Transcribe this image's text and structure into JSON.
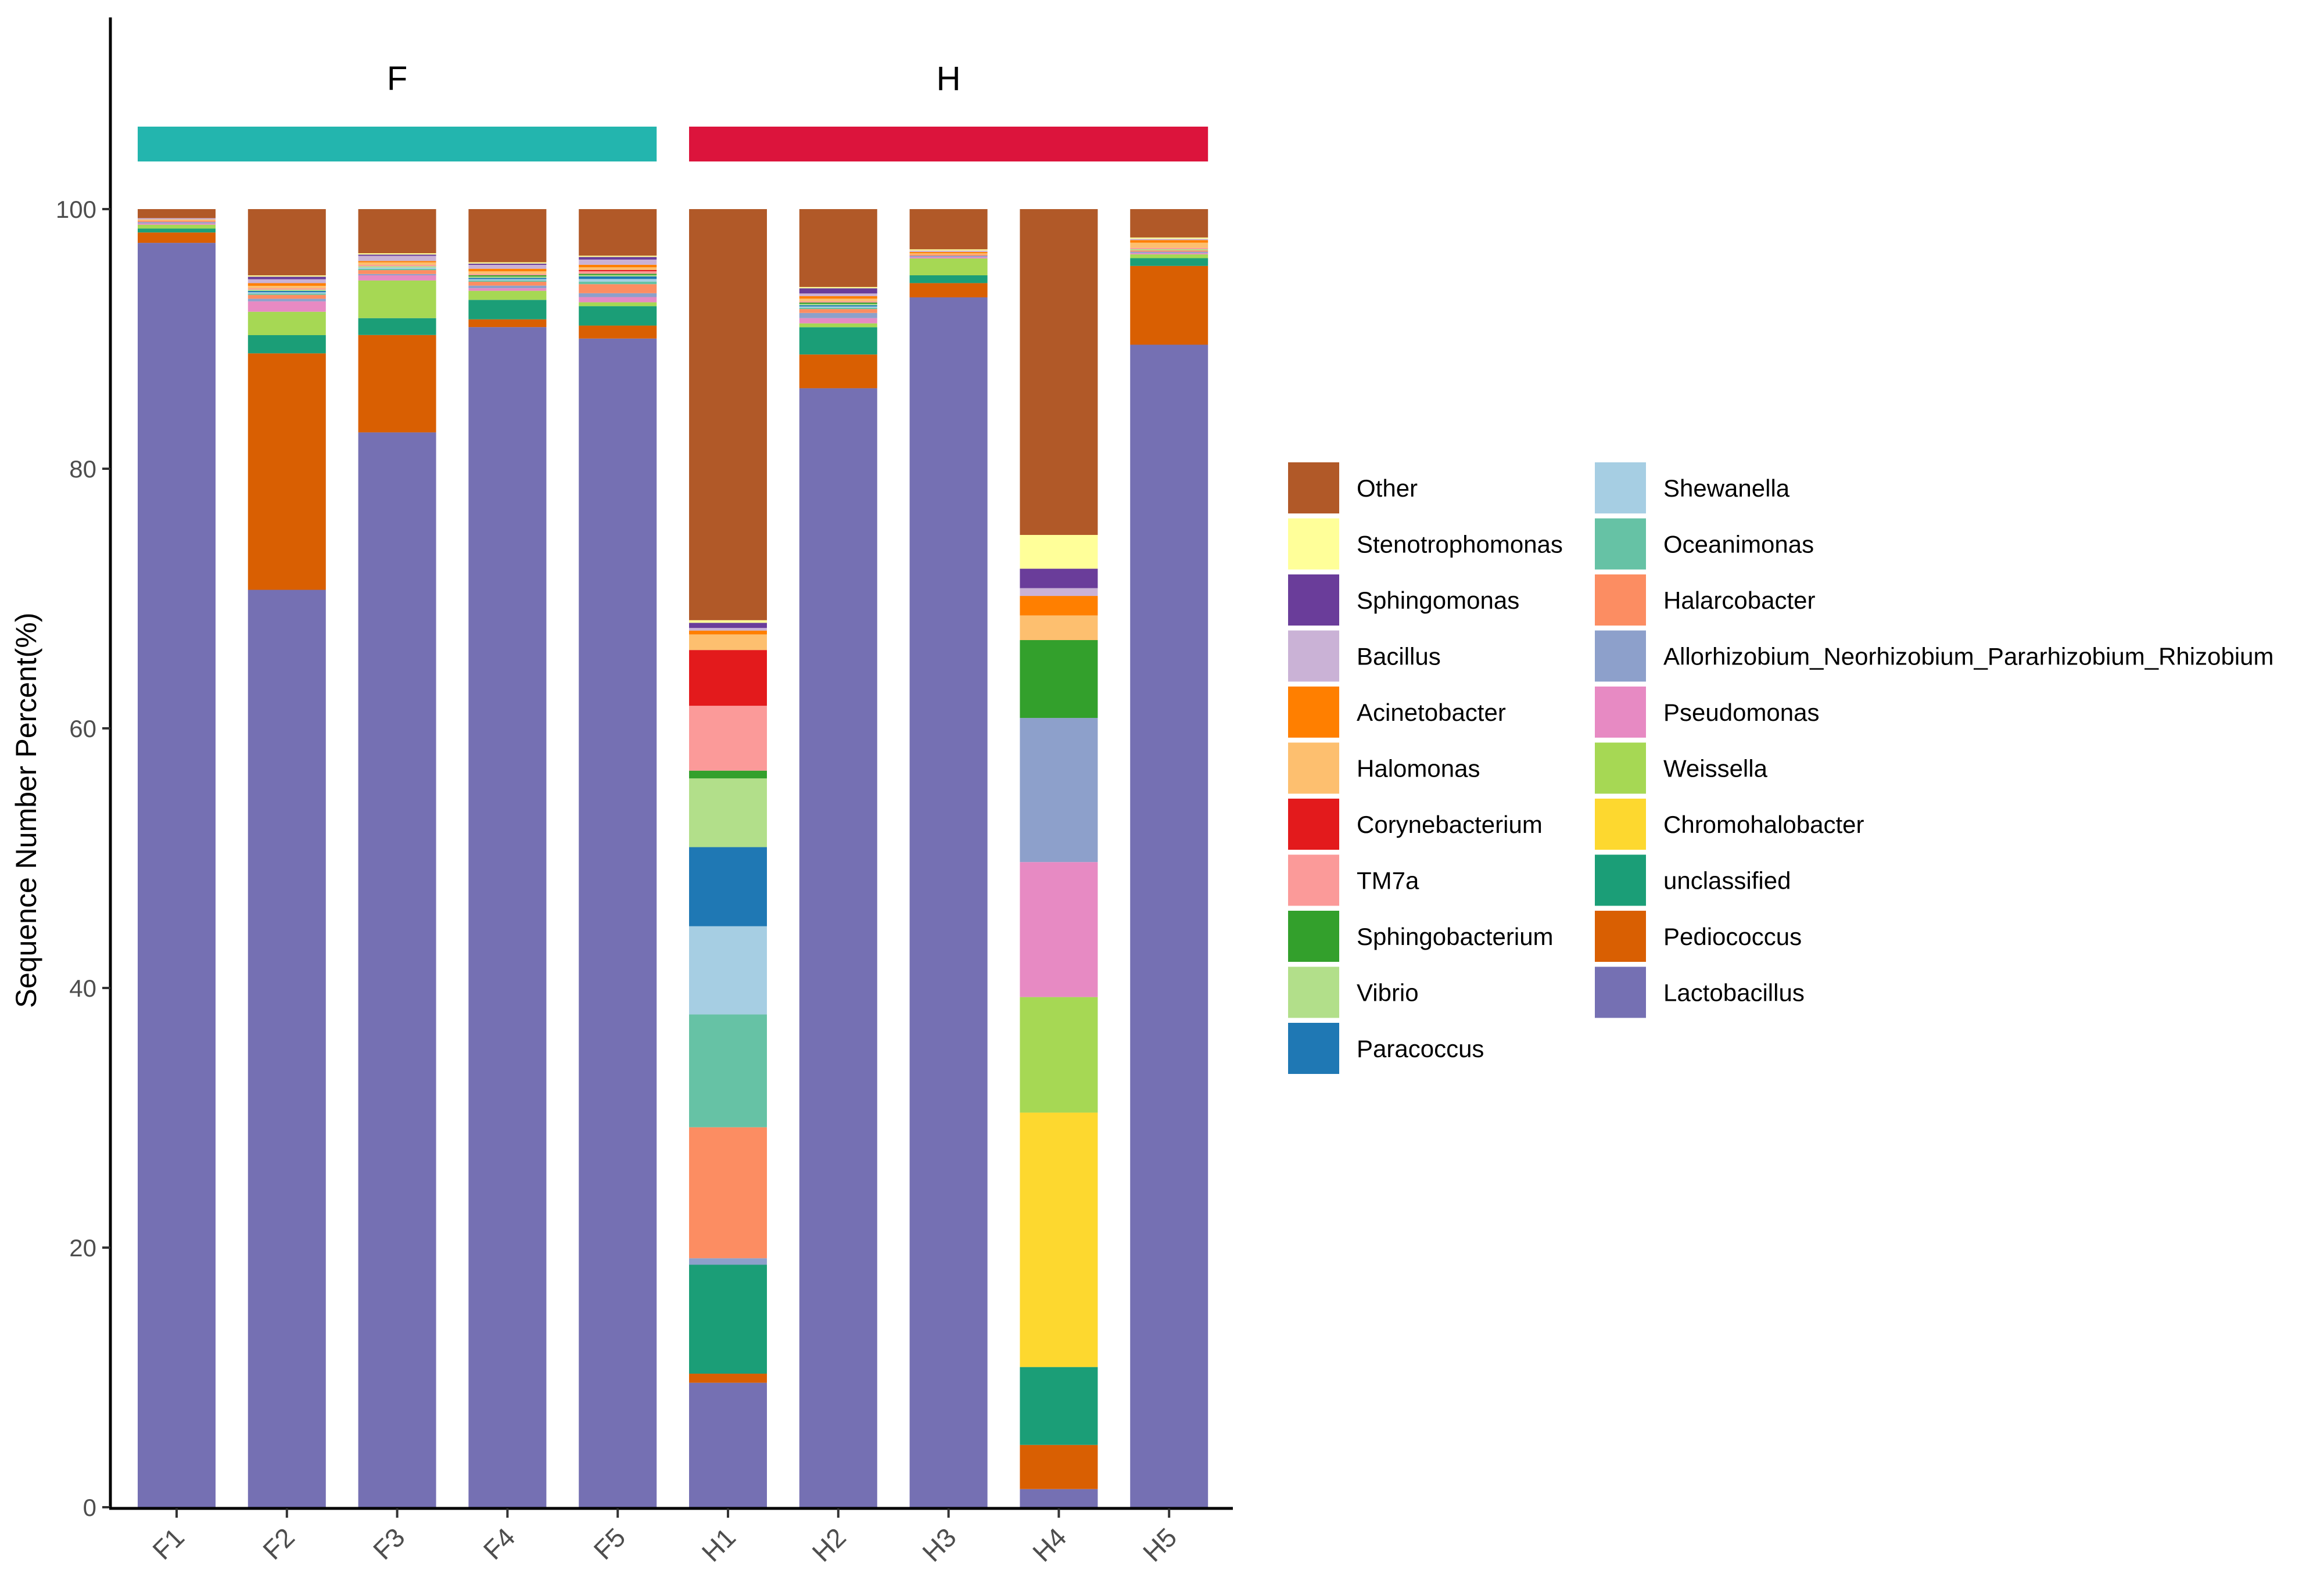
{
  "chart_data": {
    "type": "stacked-bar",
    "ylabel": "Sequence Number Percent(%)",
    "xlabel": "",
    "ylim": [
      0,
      100
    ],
    "yticks": [
      0,
      20,
      40,
      60,
      80,
      100
    ],
    "groups": [
      {
        "label": "F",
        "color": "#23B5AE",
        "samples": [
          "F1",
          "F2",
          "F3",
          "F4",
          "F5"
        ]
      },
      {
        "label": "H",
        "color": "#DC143C",
        "samples": [
          "H1",
          "H2",
          "H3",
          "H4",
          "H5"
        ]
      }
    ],
    "categories": [
      "F1",
      "F2",
      "F3",
      "F4",
      "F5",
      "H1",
      "H2",
      "H3",
      "H4",
      "H5"
    ],
    "stack_order": [
      "Lactobacillus",
      "Pediococcus",
      "unclassified",
      "Chromohalobacter",
      "Weissella",
      "Pseudomonas",
      "Allorhizobium_Neorhizobium_Pararhizobium_Rhizobium",
      "Halarcobacter",
      "Oceanimonas",
      "Shewanella",
      "Paracoccus",
      "Vibrio",
      "Sphingobacterium",
      "TM7a",
      "Corynebacterium",
      "Halomonas",
      "Acinetobacter",
      "Bacillus",
      "Sphingomonas",
      "Stenotrophomonas",
      "Other"
    ],
    "series": [
      {
        "name": "Lactobacillus",
        "color": "#7570B3",
        "values": [
          97.4,
          70.6,
          82.8,
          91.0,
          90.3,
          9.6,
          86.2,
          93.2,
          1.4,
          90.0
        ]
      },
      {
        "name": "Pediococcus",
        "color": "#D95F02",
        "values": [
          0.8,
          18.2,
          7.5,
          0.6,
          1.0,
          0.7,
          2.6,
          1.1,
          3.4,
          6.1
        ]
      },
      {
        "name": "unclassified",
        "color": "#1B9E77",
        "values": [
          0.3,
          1.4,
          1.3,
          1.5,
          1.5,
          8.4,
          2.1,
          0.6,
          6.0,
          0.6
        ]
      },
      {
        "name": "Chromohalobacter",
        "color": "#FDD82F",
        "values": [
          0.0,
          0.0,
          0.0,
          0.0,
          0.0,
          0.0,
          0.0,
          0.0,
          19.6,
          0.0
        ]
      },
      {
        "name": "Weissella",
        "color": "#A6D854",
        "values": [
          0.3,
          1.8,
          2.9,
          0.7,
          0.3,
          0.0,
          0.3,
          1.3,
          8.9,
          0.3
        ]
      },
      {
        "name": "Pseudomonas",
        "color": "#E78AC3",
        "values": [
          0.1,
          0.8,
          0.4,
          0.2,
          0.4,
          0.0,
          0.4,
          0.1,
          10.4,
          0.1
        ]
      },
      {
        "name": "Allorhizobium_Neorhizobium_Pararhizobium_Rhizobium",
        "color": "#8DA0CB",
        "values": [
          0.1,
          0.2,
          0.1,
          0.2,
          0.3,
          0.5,
          0.4,
          0.1,
          11.1,
          0.1
        ]
      },
      {
        "name": "Halarcobacter",
        "color": "#FC8D62",
        "values": [
          0.1,
          0.3,
          0.3,
          0.3,
          0.7,
          10.1,
          0.3,
          0.1,
          0.0,
          0.1
        ]
      },
      {
        "name": "Oceanimonas",
        "color": "#66C2A5",
        "values": [
          0.0,
          0.1,
          0.1,
          0.1,
          0.2,
          8.7,
          0.1,
          0.0,
          0.0,
          0.0
        ]
      },
      {
        "name": "Shewanella",
        "color": "#A6CEE3",
        "values": [
          0.0,
          0.1,
          0.1,
          0.1,
          0.2,
          6.8,
          0.1,
          0.0,
          0.0,
          0.0
        ]
      },
      {
        "name": "Paracoccus",
        "color": "#1F78B4",
        "values": [
          0.0,
          0.1,
          0.0,
          0.1,
          0.2,
          6.1,
          0.1,
          0.0,
          0.0,
          0.0
        ]
      },
      {
        "name": "Vibrio",
        "color": "#B2DF8A",
        "values": [
          0.0,
          0.1,
          0.1,
          0.1,
          0.1,
          5.3,
          0.1,
          0.0,
          0.0,
          0.1
        ]
      },
      {
        "name": "Sphingobacterium",
        "color": "#33A02C",
        "values": [
          0.0,
          0.0,
          0.0,
          0.1,
          0.1,
          0.6,
          0.1,
          0.0,
          6.0,
          0.0
        ]
      },
      {
        "name": "TM7a",
        "color": "#FB9A99",
        "values": [
          0.0,
          0.1,
          0.1,
          0.1,
          0.2,
          5.0,
          0.1,
          0.0,
          0.0,
          0.1
        ]
      },
      {
        "name": "Corynebacterium",
        "color": "#E31A1C",
        "values": [
          0.0,
          0.0,
          0.0,
          0.0,
          0.1,
          4.3,
          0.0,
          0.0,
          0.0,
          0.0
        ]
      },
      {
        "name": "Halomonas",
        "color": "#FDBF6F",
        "values": [
          0.1,
          0.2,
          0.2,
          0.2,
          0.2,
          1.2,
          0.2,
          0.1,
          1.9,
          0.4
        ]
      },
      {
        "name": "Acinetobacter",
        "color": "#FF7F00",
        "values": [
          0.0,
          0.2,
          0.1,
          0.2,
          0.2,
          0.3,
          0.2,
          0.1,
          1.5,
          0.2
        ]
      },
      {
        "name": "Bacillus",
        "color": "#CAB2D6",
        "values": [
          0.1,
          0.3,
          0.4,
          0.3,
          0.4,
          0.2,
          0.2,
          0.1,
          0.6,
          0.1
        ]
      },
      {
        "name": "Sphingomonas",
        "color": "#6A3D9A",
        "values": [
          0.0,
          0.2,
          0.1,
          0.1,
          0.2,
          0.4,
          0.4,
          0.0,
          1.5,
          0.0
        ]
      },
      {
        "name": "Stenotrophomonas",
        "color": "#FFFF99",
        "values": [
          0.0,
          0.1,
          0.1,
          0.1,
          0.1,
          0.2,
          0.1,
          0.1,
          2.6,
          0.1
        ]
      },
      {
        "name": "Other",
        "color": "#B15928",
        "values": [
          0.7,
          5.1,
          3.4,
          4.1,
          3.6,
          31.7,
          6.0,
          3.1,
          25.1,
          2.2
        ]
      }
    ],
    "legend": {
      "placement": "right",
      "columns": [
        [
          "Other",
          "Stenotrophomonas",
          "Sphingomonas",
          "Bacillus",
          "Acinetobacter",
          "Halomonas",
          "Corynebacterium",
          "TM7a",
          "Sphingobacterium",
          "Vibrio",
          "Paracoccus"
        ],
        [
          "Shewanella",
          "Oceanimonas",
          "Halarcobacter",
          "Allorhizobium_Neorhizobium_Pararhizobium_Rhizobium",
          "Pseudomonas",
          "Weissella",
          "Chromohalobacter",
          "unclassified",
          "Pediococcus",
          "Lactobacillus"
        ]
      ]
    }
  }
}
